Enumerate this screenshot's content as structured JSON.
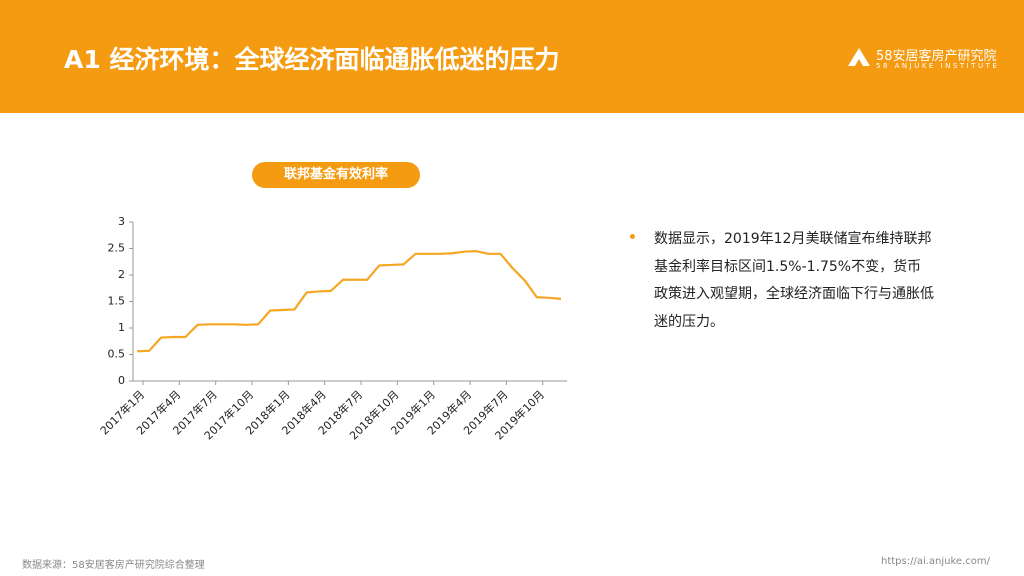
{
  "header": {
    "title": "A1 经济环境：全球经济面临通胀低迷的压力",
    "logo": "58安居客房产研究院",
    "logo_sub": "58 ANJUKE INSTITUTE"
  },
  "chart_data": {
    "type": "line",
    "title": "联邦基金有效利率",
    "categories": [
      "2017年1月",
      null,
      null,
      "2017年4月",
      null,
      null,
      "2017年7月",
      null,
      null,
      "2017年10月",
      null,
      null,
      "2018年1月",
      null,
      null,
      "2018年4月",
      null,
      null,
      "2018年7月",
      null,
      null,
      "2018年10月",
      null,
      null,
      "2019年1月",
      null,
      null,
      "2019年4月",
      null,
      null,
      "2019年7月",
      null,
      null,
      "2019年10月",
      null,
      null
    ],
    "values": [
      0.56,
      0.57,
      0.82,
      0.83,
      0.83,
      1.06,
      1.07,
      1.07,
      1.07,
      1.06,
      1.07,
      1.33,
      1.34,
      1.35,
      1.67,
      1.69,
      1.7,
      1.91,
      1.91,
      1.91,
      2.18,
      2.19,
      2.2,
      2.4,
      2.4,
      2.4,
      2.41,
      2.44,
      2.45,
      2.4,
      2.4,
      2.13,
      1.9,
      1.58,
      1.57,
      1.55
    ],
    "color": "#f5a623",
    "ylim": [
      0,
      3
    ],
    "yticks": [
      0,
      0.5,
      1,
      1.5,
      2,
      2.5,
      3
    ]
  },
  "notes": {
    "bullet": "数据显示，2019年12月美联储宣布维持联邦基金利率目标区间1.5%-1.75%不变，货币政策进入观望期，全球经济面临下行与通胀低迷的压力。"
  },
  "footer": {
    "source": "数据来源：58安居客房产研究院综合整理",
    "url": "https://ai.anjuke.com/"
  }
}
